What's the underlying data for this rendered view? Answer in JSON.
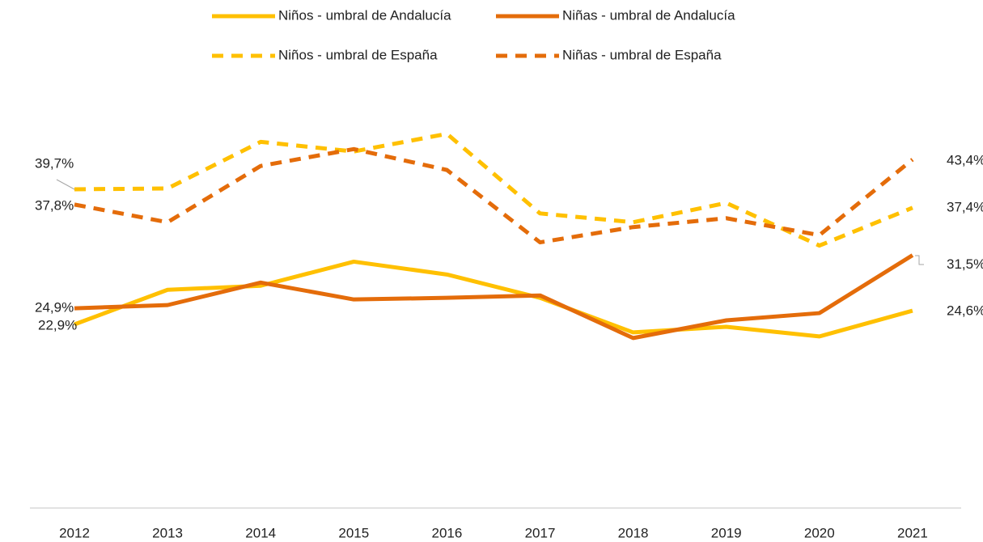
{
  "chart_data": {
    "type": "line",
    "categories": [
      "2012",
      "2013",
      "2014",
      "2015",
      "2016",
      "2017",
      "2018",
      "2019",
      "2020",
      "2021"
    ],
    "ylim": [
      0,
      50
    ],
    "series": [
      {
        "name": "Niños - umbral de Andalucía",
        "color": "#FFC000",
        "dashed": false,
        "values": [
          22.9,
          27.2,
          27.7,
          30.7,
          29.1,
          26.2,
          21.9,
          22.6,
          21.4,
          24.6
        ],
        "value_labels": [
          "22,9%",
          null,
          null,
          null,
          null,
          null,
          null,
          null,
          null,
          "24,6%"
        ]
      },
      {
        "name": "Niñas - umbral de Andalucía",
        "color": "#E46C0A",
        "dashed": false,
        "values": [
          24.9,
          25.3,
          28.1,
          26.0,
          26.2,
          26.5,
          21.2,
          23.4,
          24.3,
          31.5
        ],
        "value_labels": [
          "24,9%",
          null,
          null,
          null,
          null,
          null,
          null,
          null,
          null,
          "31,5%"
        ]
      },
      {
        "name": "Niños - umbral de España",
        "color": "#FFC000",
        "dashed": true,
        "values": [
          39.7,
          39.8,
          45.6,
          44.4,
          46.6,
          36.7,
          35.6,
          38.0,
          32.7,
          37.4
        ],
        "value_labels": [
          "39,7%",
          null,
          null,
          null,
          null,
          null,
          null,
          null,
          null,
          "37,4%"
        ]
      },
      {
        "name": "Niñas - umbral de España",
        "color": "#E46C0A",
        "dashed": true,
        "values": [
          37.8,
          35.6,
          42.6,
          44.7,
          42.1,
          33.1,
          35.0,
          36.1,
          34.0,
          43.4
        ],
        "value_labels": [
          "37,8%",
          null,
          null,
          null,
          null,
          null,
          null,
          null,
          null,
          "43,4%"
        ]
      }
    ]
  }
}
